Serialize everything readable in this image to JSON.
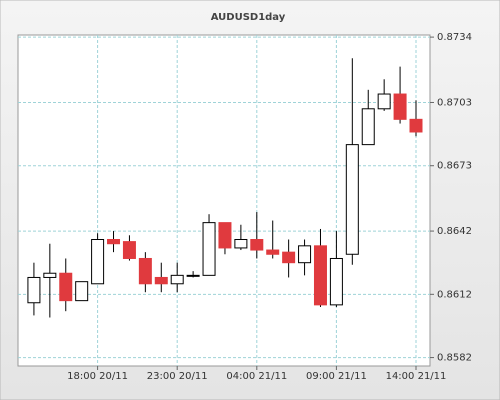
{
  "chart_data": {
    "type": "candlestick",
    "title": "AUDUSD1day",
    "categories": [
      null,
      null,
      null,
      null,
      "18:00 20/11",
      null,
      null,
      null,
      null,
      "23:00 20/11",
      null,
      null,
      null,
      null,
      "04:00 21/11",
      null,
      null,
      null,
      null,
      "09:00 21/11",
      null,
      null,
      null,
      null,
      "14:00 21/11"
    ],
    "open": [
      0.8608,
      0.862,
      0.8622,
      0.8609,
      0.8617,
      0.8638,
      0.8637,
      0.8629,
      0.862,
      0.8617,
      0.8621,
      0.8621,
      0.8646,
      0.8634,
      0.8638,
      0.8633,
      0.8632,
      0.8627,
      0.8635,
      0.8607,
      0.8631,
      0.8683,
      0.87,
      0.8707,
      0.8695
    ],
    "high": [
      0.8627,
      0.8636,
      0.8629,
      0.8618,
      0.8641,
      0.8642,
      0.864,
      0.8632,
      0.8627,
      0.8627,
      0.8623,
      0.865,
      0.8646,
      0.8645,
      0.8651,
      0.8647,
      0.8638,
      0.8638,
      0.8643,
      0.8642,
      0.8724,
      0.8709,
      0.8714,
      0.872,
      0.8704
    ],
    "low": [
      0.8602,
      0.8601,
      0.8604,
      0.8609,
      0.8617,
      0.8632,
      0.8628,
      0.8613,
      0.8613,
      0.8613,
      0.862,
      0.8621,
      0.8631,
      0.8633,
      0.8629,
      0.8629,
      0.862,
      0.8621,
      0.8606,
      0.8606,
      0.8626,
      0.8683,
      0.8699,
      0.8693,
      0.8687
    ],
    "close": [
      0.862,
      0.8622,
      0.8609,
      0.8618,
      0.8638,
      0.8636,
      0.8629,
      0.8617,
      0.8617,
      0.8621,
      0.8621,
      0.8646,
      0.8634,
      0.8638,
      0.8633,
      0.8631,
      0.8627,
      0.8635,
      0.8607,
      0.8629,
      0.8683,
      0.87,
      0.8707,
      0.8695,
      0.8689
    ],
    "up_color": "#ffffff",
    "down_color": "#e03a3e",
    "ylim": [
      0.8578,
      0.8735
    ],
    "yticks": [
      0.8582,
      0.8612,
      0.8642,
      0.8673,
      0.8703,
      0.8734
    ],
    "grid": true
  }
}
